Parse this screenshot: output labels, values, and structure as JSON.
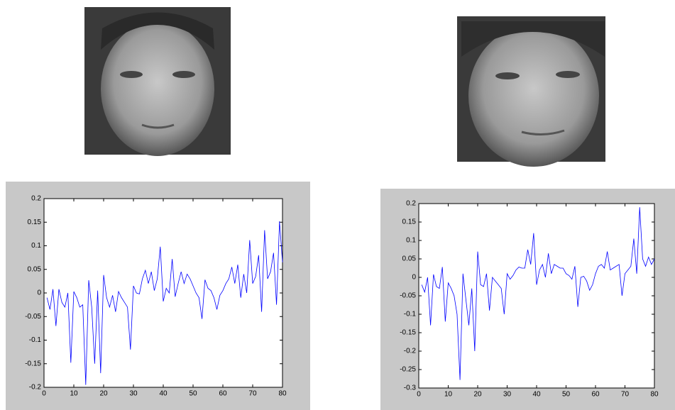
{
  "chart_data": [
    {
      "type": "line",
      "color": "#0000ff",
      "xlim": [
        0,
        80
      ],
      "ylim": [
        -0.2,
        0.2
      ],
      "xticks": [
        0,
        10,
        20,
        30,
        40,
        50,
        60,
        70,
        80
      ],
      "yticks": [
        -0.2,
        -0.15,
        -0.1,
        -0.05,
        0,
        0.05,
        0.1,
        0.15,
        0.2
      ],
      "x": [
        1,
        2,
        3,
        4,
        5,
        6,
        7,
        8,
        9,
        10,
        11,
        12,
        13,
        14,
        15,
        16,
        17,
        18,
        19,
        20,
        21,
        22,
        23,
        24,
        25,
        26,
        27,
        28,
        29,
        30,
        31,
        32,
        33,
        34,
        35,
        36,
        37,
        38,
        39,
        40,
        41,
        42,
        43,
        44,
        45,
        46,
        47,
        48,
        49,
        50,
        51,
        52,
        53,
        54,
        55,
        56,
        57,
        58,
        59,
        60,
        61,
        62,
        63,
        64,
        65,
        66,
        67,
        68,
        69,
        70,
        71,
        72,
        73,
        74,
        75,
        76,
        77,
        78,
        79,
        80
      ],
      "values": [
        -0.01,
        -0.035,
        0.008,
        -0.07,
        0.008,
        -0.02,
        -0.03,
        0.0,
        -0.148,
        0.003,
        -0.01,
        -0.03,
        -0.025,
        -0.195,
        0.027,
        -0.03,
        -0.15,
        0.005,
        -0.17,
        0.038,
        -0.01,
        -0.03,
        -0.005,
        -0.04,
        0.003,
        -0.01,
        -0.02,
        -0.03,
        -0.12,
        0.015,
        0.0,
        -0.002,
        0.03,
        0.048,
        0.02,
        0.045,
        0.005,
        0.03,
        0.098,
        -0.018,
        0.01,
        0.0,
        0.072,
        -0.008,
        0.02,
        0.045,
        0.02,
        0.04,
        0.03,
        0.015,
        0.0,
        -0.01,
        -0.055,
        0.028,
        0.01,
        0.005,
        -0.01,
        -0.035,
        -0.005,
        0.005,
        0.02,
        0.03,
        0.055,
        0.02,
        0.06,
        -0.01,
        0.04,
        0.0,
        0.112,
        0.02,
        0.035,
        0.08,
        -0.04,
        0.133,
        0.03,
        0.045,
        0.085,
        -0.025,
        0.152,
        0.065
      ]
    },
    {
      "type": "line",
      "color": "#0000ff",
      "xlim": [
        0,
        80
      ],
      "ylim": [
        -0.3,
        0.2
      ],
      "xticks": [
        0,
        10,
        20,
        30,
        40,
        50,
        60,
        70,
        80
      ],
      "yticks": [
        -0.3,
        -0.25,
        -0.2,
        -0.15,
        -0.1,
        -0.05,
        0,
        0.05,
        0.1,
        0.15,
        0.2
      ],
      "x": [
        1,
        2,
        3,
        4,
        5,
        6,
        7,
        8,
        9,
        10,
        11,
        12,
        13,
        14,
        15,
        16,
        17,
        18,
        19,
        20,
        21,
        22,
        23,
        24,
        25,
        26,
        27,
        28,
        29,
        30,
        31,
        32,
        33,
        34,
        35,
        36,
        37,
        38,
        39,
        40,
        41,
        42,
        43,
        44,
        45,
        46,
        47,
        48,
        49,
        50,
        51,
        52,
        53,
        54,
        55,
        56,
        57,
        58,
        59,
        60,
        61,
        62,
        63,
        64,
        65,
        66,
        67,
        68,
        69,
        70,
        71,
        72,
        73,
        74,
        75,
        76,
        77,
        78,
        79,
        80
      ],
      "values": [
        -0.02,
        -0.04,
        0.0,
        -0.13,
        0.008,
        -0.025,
        -0.03,
        0.028,
        -0.12,
        -0.015,
        -0.03,
        -0.05,
        -0.1,
        -0.278,
        0.01,
        -0.06,
        -0.13,
        -0.03,
        -0.2,
        0.07,
        -0.02,
        -0.025,
        0.01,
        -0.09,
        0.0,
        -0.01,
        -0.02,
        -0.03,
        -0.1,
        0.01,
        -0.005,
        0.005,
        0.02,
        0.028,
        0.025,
        0.025,
        0.075,
        0.035,
        0.12,
        -0.02,
        0.02,
        0.035,
        0.0,
        0.065,
        0.01,
        0.035,
        0.03,
        0.025,
        0.025,
        0.01,
        0.005,
        -0.005,
        0.03,
        -0.08,
        0.0,
        0.003,
        -0.01,
        -0.035,
        -0.02,
        0.01,
        0.03,
        0.035,
        0.025,
        0.07,
        0.02,
        0.025,
        0.03,
        0.035,
        -0.05,
        0.01,
        0.02,
        0.03,
        0.105,
        0.01,
        0.19,
        0.05,
        0.03,
        0.055,
        0.035,
        0.05
      ]
    }
  ]
}
